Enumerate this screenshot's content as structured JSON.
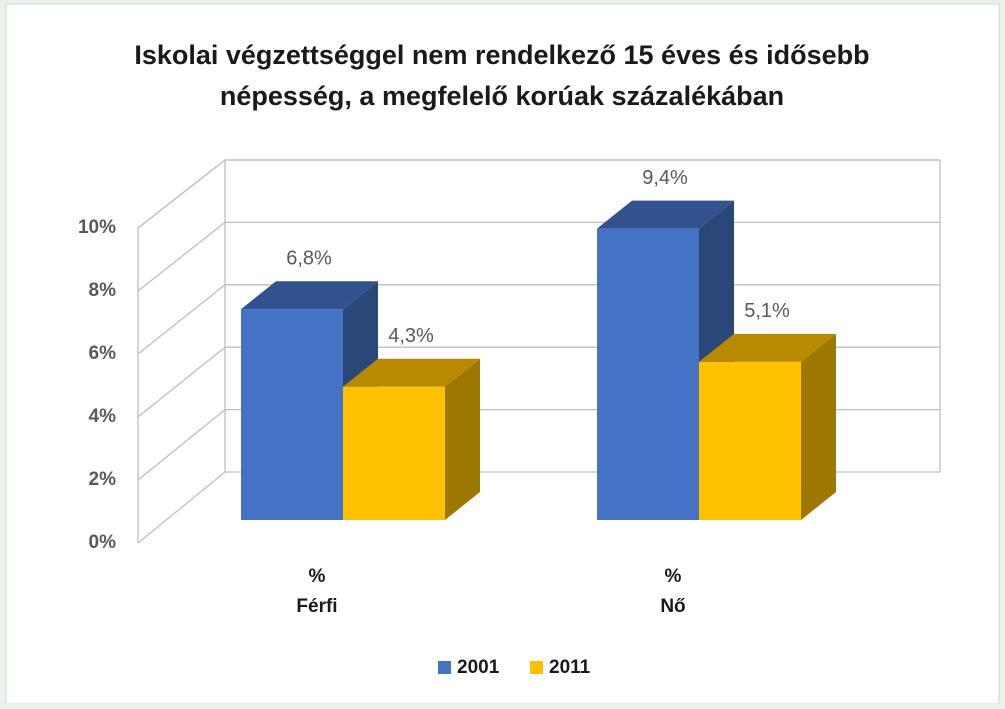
{
  "chart_data": {
    "type": "bar3d",
    "title": [
      "Iskolai végzettséggel nem rendelkező 15 éves és idősebb",
      "népesség, a megfelelő korúak százalékában"
    ],
    "categories": [
      [
        "%",
        "Férfi"
      ],
      [
        "%",
        "Nő"
      ]
    ],
    "series": [
      {
        "name": "2001",
        "color": "#4472c4",
        "values": [
          6.8,
          9.4
        ],
        "value_labels": [
          "6,8%",
          "9,4%"
        ]
      },
      {
        "name": "2011",
        "color": "#ffc000",
        "values": [
          4.3,
          5.1
        ],
        "value_labels": [
          "4,3%",
          "5,1%"
        ]
      }
    ],
    "ylim": [
      0,
      10
    ],
    "yticks": [
      {
        "value": 0,
        "label": "0%"
      },
      {
        "value": 2,
        "label": "2%"
      },
      {
        "value": 4,
        "label": "4%"
      },
      {
        "value": 6,
        "label": "6%"
      },
      {
        "value": 8,
        "label": "8%"
      },
      {
        "value": 10,
        "label": "10%"
      }
    ],
    "grid": true,
    "legend": "bottom"
  }
}
